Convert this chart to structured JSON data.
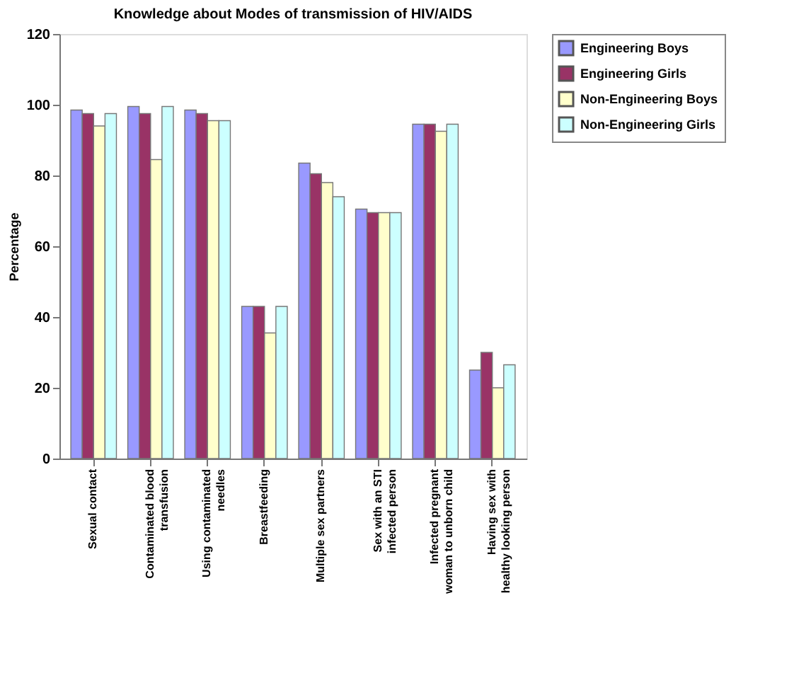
{
  "chart_data": {
    "type": "bar",
    "title": "Knowledge about Modes of transmission of HIV/AIDS",
    "ylabel": "Percentage",
    "categories": [
      "Sexual contact",
      "Contaminated blood transfusion",
      "Using contaminated needles",
      "Breastfeeding",
      "Multiple sex partners",
      "Sex with an STI infected person",
      "Infected pregnant woman to unborn child",
      "Having sex with healthy looking person"
    ],
    "series": [
      {
        "name": "Engineering Boys",
        "color": "#9999ff",
        "values": [
          98.5,
          99.5,
          98.5,
          43,
          83.5,
          70.5,
          94.5,
          25
        ]
      },
      {
        "name": "Engineering Girls",
        "color": "#993366",
        "values": [
          97.5,
          97.5,
          97.5,
          43,
          80.5,
          69.5,
          94.5,
          30
        ]
      },
      {
        "name": "Non-Engineering Boys",
        "color": "#ffffcc",
        "values": [
          94,
          84.5,
          95.5,
          35.5,
          78,
          69.5,
          92.5,
          20
        ]
      },
      {
        "name": "Non-Engineering Girls",
        "color": "#ccffff",
        "values": [
          97.5,
          99.5,
          95.5,
          43,
          74,
          69.5,
          94.5,
          26.5
        ]
      }
    ],
    "ylim": [
      0,
      120
    ],
    "yticks": [
      0,
      20,
      40,
      60,
      80,
      100,
      120
    ],
    "grid": false,
    "legend": "top right"
  }
}
